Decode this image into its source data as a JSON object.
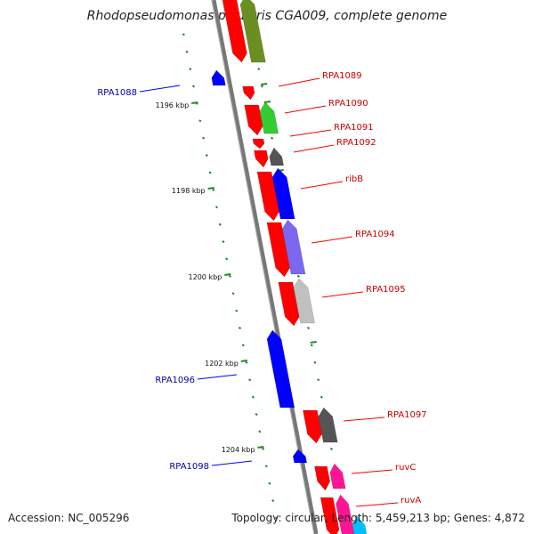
{
  "title": "Rhodopseudomonas palustris CGA009, complete genome",
  "accession": "Accession: NC_005296",
  "summary": "Topology: circular; Length: 5,459,213 bp; Genes: 4,872",
  "colors": {
    "red": "#ff0000",
    "blue": "#0000ff",
    "olive": "#6b8e23",
    "green": "#33cc33",
    "gray": "#555555",
    "slateblue": "#7b68ee",
    "lightgray": "#c0c0c0",
    "pink": "#ff1493",
    "cyan": "#00bfff",
    "backbone": "#808080",
    "tick": "#228b22",
    "label_red": "#cc0000",
    "label_blue": "#0000aa"
  },
  "kbp_ticks": [
    {
      "label": "1196 kbp"
    },
    {
      "label": "1198 kbp"
    },
    {
      "label": "1200 kbp"
    },
    {
      "label": "1202 kbp"
    },
    {
      "label": "1204 kbp"
    }
  ],
  "gene_labels": [
    {
      "label": "RPA1089",
      "strand": "forward"
    },
    {
      "label": "RPA1090",
      "strand": "forward"
    },
    {
      "label": "RPA1091",
      "strand": "forward"
    },
    {
      "label": "RPA1092",
      "strand": "forward"
    },
    {
      "label": "ribB",
      "strand": "forward"
    },
    {
      "label": "RPA1094",
      "strand": "forward"
    },
    {
      "label": "RPA1095",
      "strand": "forward"
    },
    {
      "label": "RPA1097",
      "strand": "forward"
    },
    {
      "label": "ruvC",
      "strand": "forward"
    },
    {
      "label": "ruvA",
      "strand": "forward"
    },
    {
      "label": "RPA1088",
      "strand": "reverse"
    },
    {
      "label": "RPA1096",
      "strand": "reverse"
    },
    {
      "label": "RPA1098",
      "strand": "reverse"
    }
  ]
}
